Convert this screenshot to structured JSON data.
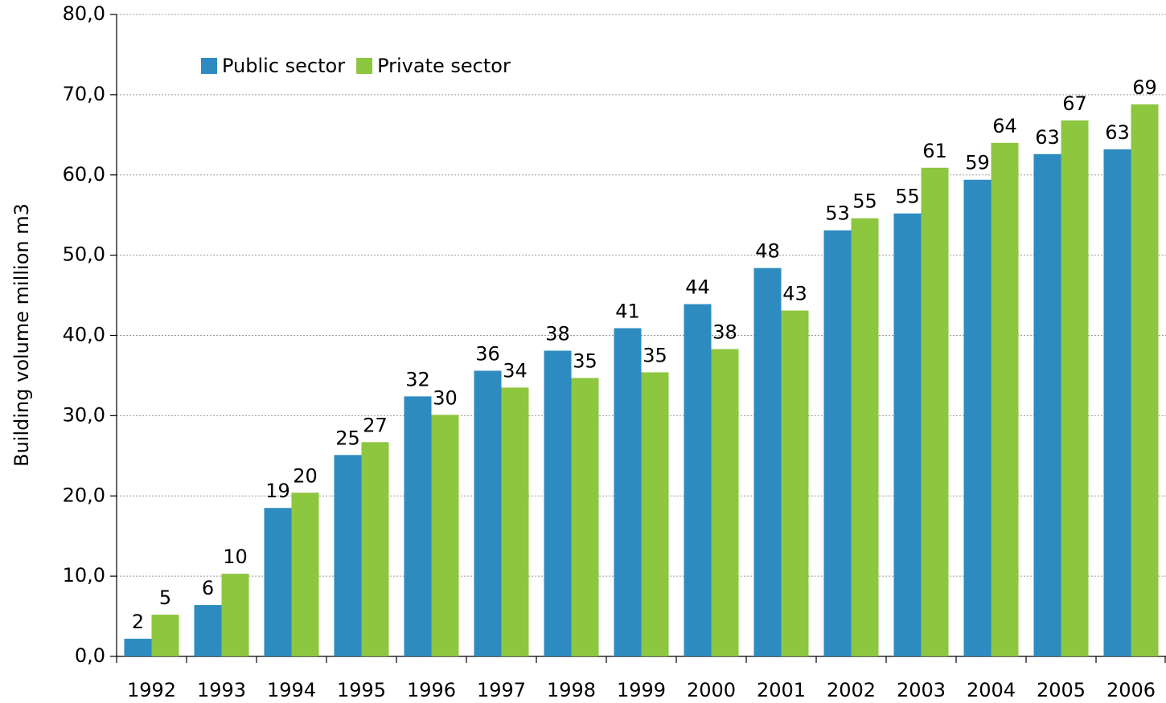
{
  "chart_data": {
    "type": "bar",
    "y_label": "Building volume million m3",
    "categories": [
      "1992",
      "1993",
      "1994",
      "1995",
      "1996",
      "1997",
      "1998",
      "1999",
      "2000",
      "2001",
      "2002",
      "2003",
      "2004",
      "2005",
      "2006"
    ],
    "series": [
      {
        "name": "Public sector",
        "color": "#2e8bc0",
        "values": [
          2.2,
          6.4,
          18.5,
          25.1,
          32.4,
          35.6,
          38.1,
          40.9,
          43.9,
          48.4,
          53.1,
          55.2,
          59.4,
          62.6,
          63.2
        ],
        "value_labels": [
          "2",
          "6",
          "19",
          "25",
          "32",
          "36",
          "38",
          "41",
          "44",
          "48",
          "53",
          "55",
          "59",
          "63",
          "63"
        ]
      },
      {
        "name": "Private sector",
        "color": "#8dc63f",
        "values": [
          5.2,
          10.3,
          20.4,
          26.7,
          30.1,
          33.5,
          34.7,
          35.4,
          38.3,
          43.1,
          54.6,
          60.9,
          64.0,
          66.8,
          68.8
        ],
        "value_labels": [
          "5",
          "10",
          "20",
          "27",
          "30",
          "34",
          "35",
          "35",
          "38",
          "43",
          "55",
          "61",
          "64",
          "67",
          "69"
        ]
      }
    ],
    "ylim": [
      0,
      80
    ],
    "yticks": [
      {
        "value": 0,
        "label": "0,0"
      },
      {
        "value": 10,
        "label": "10,0"
      },
      {
        "value": 20,
        "label": "20,0"
      },
      {
        "value": 30,
        "label": "30,0"
      },
      {
        "value": 40,
        "label": "40,0"
      },
      {
        "value": 50,
        "label": "50,0"
      },
      {
        "value": 60,
        "label": "60,0"
      },
      {
        "value": 70,
        "label": "70,0"
      },
      {
        "value": 80,
        "label": "80,0"
      }
    ],
    "grid": true,
    "legend": "top-left"
  }
}
